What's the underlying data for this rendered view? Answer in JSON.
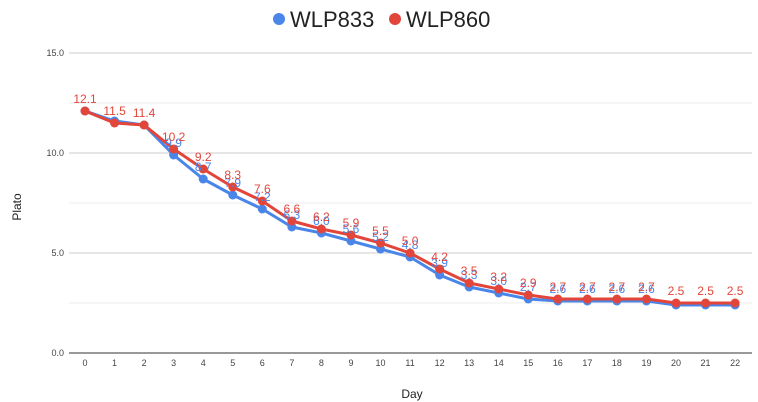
{
  "chart_data": {
    "type": "line",
    "xlabel": "Day",
    "ylabel": "Plato",
    "ylim": [
      0,
      15
    ],
    "yticks": [
      "0.0",
      "5.0",
      "10.0",
      "15.0"
    ],
    "categories": [
      "0",
      "1",
      "2",
      "3",
      "4",
      "5",
      "6",
      "7",
      "8",
      "9",
      "10",
      "11",
      "12",
      "13",
      "14",
      "15",
      "16",
      "17",
      "18",
      "19",
      "20",
      "21",
      "22"
    ],
    "grid": true,
    "legend_position": "top",
    "series": [
      {
        "name": "WLP833",
        "color": "#4a86e8",
        "values": [
          12.1,
          11.6,
          11.4,
          9.9,
          8.7,
          7.9,
          7.2,
          6.3,
          6.0,
          5.6,
          5.2,
          4.8,
          3.9,
          3.3,
          3.0,
          2.7,
          2.6,
          2.6,
          2.6,
          2.6,
          2.4,
          2.4,
          2.4
        ],
        "labels": [
          "",
          "",
          "",
          "9.9",
          "8.7",
          "7.9",
          "7.2",
          "6.3",
          "6.0",
          "5.6",
          "5.2",
          "4.8",
          "3.9",
          "3.3",
          "3.0",
          "2.7",
          "2.6",
          "2.6",
          "2.6",
          "2.6",
          "",
          "",
          ""
        ]
      },
      {
        "name": "WLP860",
        "color": "#e2463b",
        "values": [
          12.1,
          11.5,
          11.4,
          10.2,
          9.2,
          8.3,
          7.6,
          6.6,
          6.2,
          5.9,
          5.5,
          5.0,
          4.2,
          3.5,
          3.2,
          2.9,
          2.7,
          2.7,
          2.7,
          2.7,
          2.5,
          2.5,
          2.5
        ],
        "labels": [
          "12.1",
          "11.5",
          "11.4",
          "10.2",
          "9.2",
          "8.3",
          "7.6",
          "6.6",
          "6.2",
          "5.9",
          "5.5",
          "5.0",
          "4.2",
          "3.5",
          "3.2",
          "2.9",
          "2.7",
          "2.7",
          "2.7",
          "2.7",
          "2.5",
          "2.5",
          "2.5"
        ]
      }
    ]
  }
}
